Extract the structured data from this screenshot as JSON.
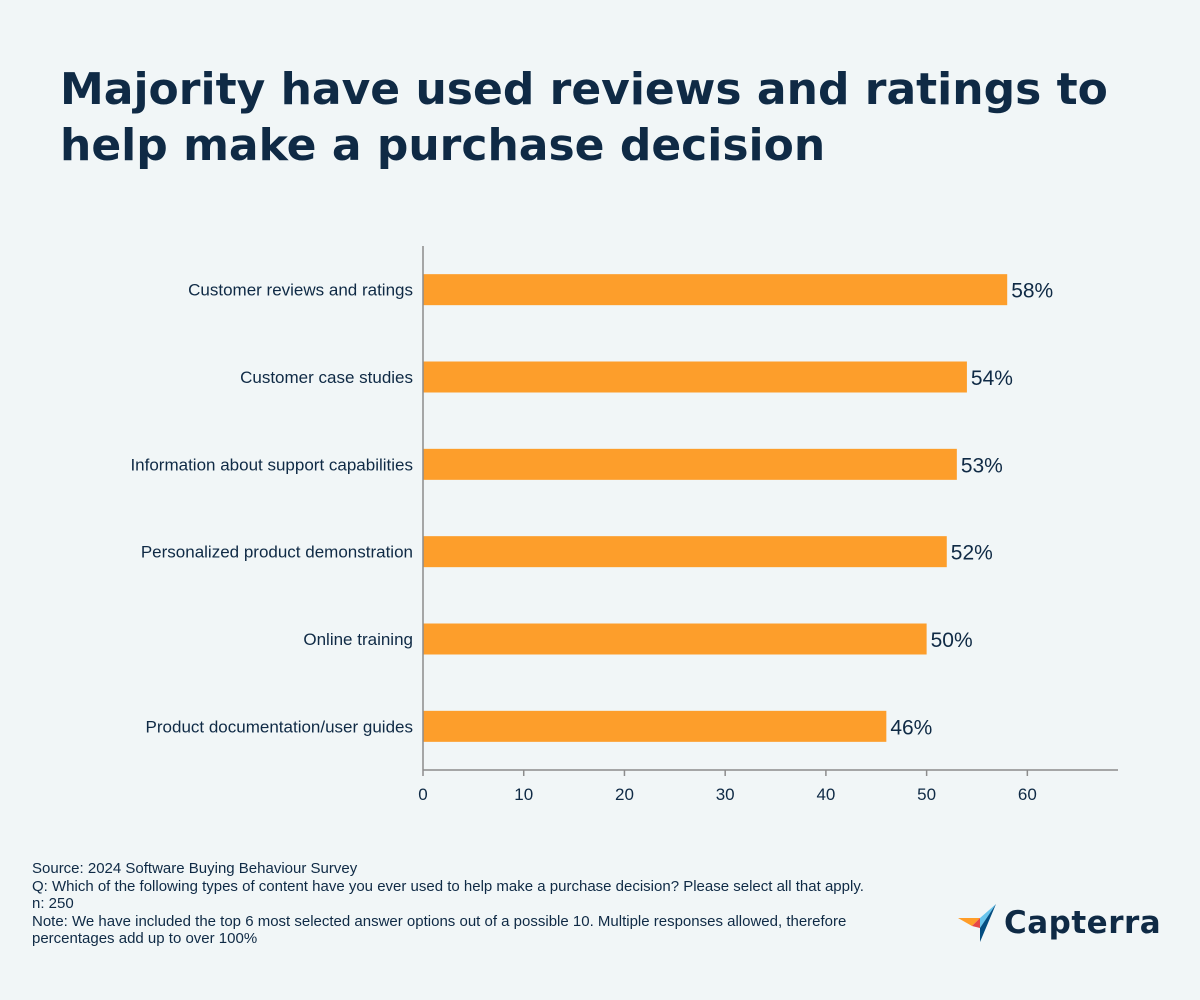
{
  "title": "Majority have used reviews and ratings to help make a purchase decision",
  "chart_data": {
    "type": "bar",
    "orientation": "horizontal",
    "categories": [
      "Customer reviews and ratings",
      "Customer case studies",
      "Information about support capabilities",
      "Personalized product demonstration",
      "Online training",
      "Product documentation/user guides"
    ],
    "values": [
      58,
      54,
      53,
      52,
      50,
      46
    ],
    "value_labels": [
      "58%",
      "54%",
      "53%",
      "52%",
      "50%",
      "46%"
    ],
    "xticks": [
      0,
      10,
      20,
      30,
      40,
      50,
      60
    ],
    "xlim": [
      0,
      69
    ],
    "bar_color": "#fd9e2b",
    "grid": false
  },
  "footer": {
    "source": "Source: 2024 Software Buying Behaviour Survey",
    "question": "Q: Which of the following types of content have you ever used to help make a purchase decision? Please select all that apply.",
    "n": "n: 250",
    "note": "Note: We have included the top 6 most selected answer options out of a possible 10. Multiple responses allowed, therefore percentages add up to over 100%"
  },
  "logo": {
    "text": "Capterra",
    "icon": "capterra-arrow-icon",
    "colors": [
      "#ff9d28",
      "#68c5ed",
      "#044d80",
      "#e54747"
    ]
  }
}
